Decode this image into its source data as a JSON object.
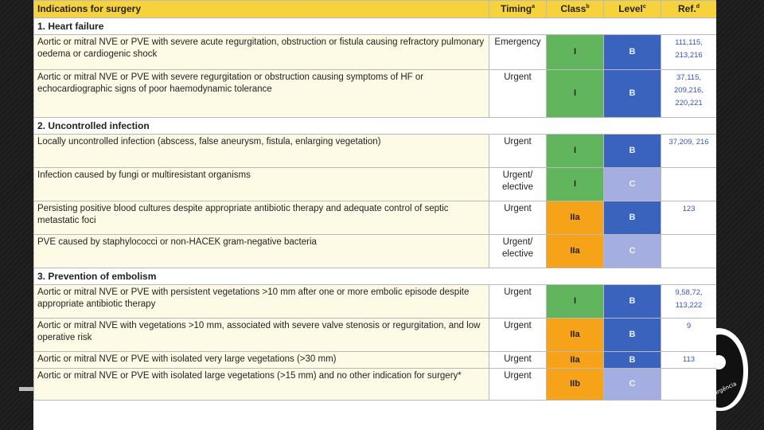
{
  "table": {
    "headers": {
      "indication": "Indications for surgery",
      "timing": "Timing",
      "timing_sup": "a",
      "class": "Class",
      "class_sup": "b",
      "level": "Level",
      "level_sup": "c",
      "ref": "Ref.",
      "ref_sup": "d"
    },
    "sections": [
      {
        "title": "1. Heart failure",
        "rows": [
          {
            "indication": "Aortic or mitral NVE or PVE with severe acute regurgitation, obstruction or fistula causing refractory pulmonary oedema or cardiogenic shock",
            "timing": "Emergency",
            "class": "I",
            "level": "B",
            "ref": "111,115, 213,216"
          },
          {
            "indication": "Aortic or mitral NVE or PVE with severe regurgitation or obstruction causing symptoms of HF or echocardiographic signs of poor haemodynamic tolerance",
            "timing": "Urgent",
            "class": "I",
            "level": "B",
            "ref": "37,115, 209,216, 220,221"
          }
        ]
      },
      {
        "title": "2. Uncontrolled infection",
        "rows": [
          {
            "indication": "Locally uncontrolled infection (abscess, false aneurysm, fistula, enlarging vegetation)",
            "timing": "Urgent",
            "class": "I",
            "level": "B",
            "ref": "37,209, 216"
          },
          {
            "indication": "Infection caused by fungi or multiresistant organisms",
            "timing": "Urgent/ elective",
            "class": "I",
            "level": "C",
            "ref": ""
          },
          {
            "indication": "Persisting positive blood cultures despite appropriate antibiotic therapy and adequate control of septic metastatic foci",
            "timing": "Urgent",
            "class": "IIa",
            "level": "B",
            "ref": "123"
          },
          {
            "indication": "PVE caused by staphylococci or non-HACEK gram-negative bacteria",
            "timing": "Urgent/ elective",
            "class": "IIa",
            "level": "C",
            "ref": ""
          }
        ]
      },
      {
        "title": "3. Prevention of embolism",
        "rows": [
          {
            "indication": "Aortic or mitral NVE or PVE with persistent vegetations >10 mm after one or more embolic episode despite appropriate antibiotic therapy",
            "timing": "Urgent",
            "class": "I",
            "level": "B",
            "ref": "9,58,72, 113,222"
          },
          {
            "indication": "Aortic or mitral NVE with vegetations >10 mm, associated with severe valve stenosis or regurgitation, and low operative risk",
            "timing": "Urgent",
            "class": "IIa",
            "level": "B",
            "ref": "9"
          },
          {
            "indication": "Aortic or mitral NVE or PVE with isolated very large vegetations (>30 mm)",
            "timing": "Urgent",
            "class": "IIa",
            "level": "B",
            "ref": "113"
          },
          {
            "indication": "Aortic or mitral NVE or PVE with isolated large vegetations (>15 mm) and no other indication for surgery*",
            "timing": "Urgent",
            "class": "IIb",
            "level": "C",
            "ref": ""
          }
        ]
      }
    ]
  },
  "logo": {
    "text": "urgência"
  }
}
